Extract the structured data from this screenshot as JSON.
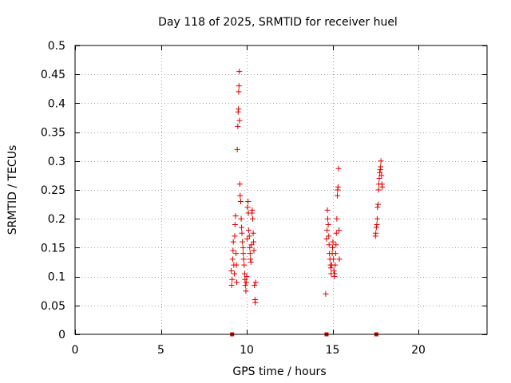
{
  "chart_data": {
    "type": "scatter",
    "title": "Day 118 of 2025, SRMTID for receiver huel",
    "xlabel": "GPS time / hours",
    "ylabel": "SRMTID / TECUs",
    "xlim": [
      0,
      24
    ],
    "ylim": [
      0,
      0.5
    ],
    "x_ticks": [
      0,
      5,
      10,
      15,
      20
    ],
    "x_tick_labels": [
      "0",
      "5",
      "10",
      "15",
      "20"
    ],
    "y_ticks": [
      0,
      0.05,
      0.1,
      0.15,
      0.2,
      0.25,
      0.3,
      0.35,
      0.4,
      0.45,
      0.5
    ],
    "y_tick_labels": [
      "0",
      "0.05",
      "0.1",
      "0.15",
      "0.2",
      "0.25",
      "0.3",
      "0.35",
      "0.4",
      "0.45",
      "0.5"
    ],
    "grid": true,
    "marker_color": "#e00000",
    "series": [
      {
        "name": "SRMTID",
        "marker": "plus",
        "points": [
          [
            9.1,
            0.11
          ],
          [
            9.12,
            0.085
          ],
          [
            9.15,
            0.095
          ],
          [
            9.18,
            0.13
          ],
          [
            9.2,
            0.145
          ],
          [
            9.22,
            0.16
          ],
          [
            9.25,
            0.12
          ],
          [
            9.28,
            0.105
          ],
          [
            9.3,
            0.17
          ],
          [
            9.32,
            0.19
          ],
          [
            9.35,
            0.205
          ],
          [
            9.38,
            0.14
          ],
          [
            9.4,
            0.12
          ],
          [
            9.42,
            0.09
          ],
          [
            9.45,
            0.32
          ],
          [
            9.48,
            0.36
          ],
          [
            9.5,
            0.385
          ],
          [
            9.52,
            0.39
          ],
          [
            9.53,
            0.42
          ],
          [
            9.55,
            0.43
          ],
          [
            9.57,
            0.455
          ],
          [
            9.58,
            0.37
          ],
          [
            9.6,
            0.26
          ],
          [
            9.62,
            0.24
          ],
          [
            9.65,
            0.23
          ],
          [
            9.68,
            0.2
          ],
          [
            9.7,
            0.185
          ],
          [
            9.72,
            0.175
          ],
          [
            9.75,
            0.16
          ],
          [
            9.78,
            0.15
          ],
          [
            9.8,
            0.14
          ],
          [
            9.82,
            0.13
          ],
          [
            9.85,
            0.12
          ],
          [
            9.88,
            0.105
          ],
          [
            9.9,
            0.095
          ],
          [
            9.92,
            0.085
          ],
          [
            9.95,
            0.075
          ],
          [
            9.97,
            0.09
          ],
          [
            10.0,
            0.1
          ],
          [
            10.02,
            0.165
          ],
          [
            10.05,
            0.22
          ],
          [
            10.08,
            0.23
          ],
          [
            10.1,
            0.21
          ],
          [
            10.12,
            0.18
          ],
          [
            10.15,
            0.17
          ],
          [
            10.18,
            0.15
          ],
          [
            10.2,
            0.14
          ],
          [
            10.22,
            0.13
          ],
          [
            10.25,
            0.125
          ],
          [
            10.28,
            0.155
          ],
          [
            10.3,
            0.21
          ],
          [
            10.32,
            0.215
          ],
          [
            10.35,
            0.2
          ],
          [
            10.38,
            0.175
          ],
          [
            10.4,
            0.16
          ],
          [
            10.42,
            0.145
          ],
          [
            10.45,
            0.085
          ],
          [
            10.48,
            0.06
          ],
          [
            10.5,
            0.055
          ],
          [
            10.52,
            0.09
          ],
          [
            14.6,
            0.07
          ],
          [
            14.65,
            0.165
          ],
          [
            14.68,
            0.18
          ],
          [
            14.7,
            0.215
          ],
          [
            14.72,
            0.2
          ],
          [
            14.75,
            0.19
          ],
          [
            14.78,
            0.17
          ],
          [
            14.8,
            0.155
          ],
          [
            14.82,
            0.14
          ],
          [
            14.85,
            0.13
          ],
          [
            14.88,
            0.12
          ],
          [
            14.9,
            0.115
          ],
          [
            14.92,
            0.105
          ],
          [
            14.95,
            0.12
          ],
          [
            14.98,
            0.14
          ],
          [
            15.0,
            0.15
          ],
          [
            15.02,
            0.16
          ],
          [
            15.05,
            0.13
          ],
          [
            15.08,
            0.11
          ],
          [
            15.1,
            0.1
          ],
          [
            15.12,
            0.105
          ],
          [
            15.15,
            0.12
          ],
          [
            15.18,
            0.14
          ],
          [
            15.2,
            0.155
          ],
          [
            15.22,
            0.175
          ],
          [
            15.25,
            0.2
          ],
          [
            15.28,
            0.24
          ],
          [
            15.3,
            0.25
          ],
          [
            15.32,
            0.255
          ],
          [
            15.35,
            0.287
          ],
          [
            15.38,
            0.18
          ],
          [
            15.4,
            0.13
          ],
          [
            17.5,
            0.17
          ],
          [
            17.52,
            0.175
          ],
          [
            17.55,
            0.185
          ],
          [
            17.58,
            0.19
          ],
          [
            17.6,
            0.2
          ],
          [
            17.62,
            0.22
          ],
          [
            17.65,
            0.225
          ],
          [
            17.68,
            0.25
          ],
          [
            17.7,
            0.26
          ],
          [
            17.72,
            0.27
          ],
          [
            17.75,
            0.28
          ],
          [
            17.78,
            0.285
          ],
          [
            17.8,
            0.29
          ],
          [
            17.82,
            0.3
          ],
          [
            17.85,
            0.275
          ],
          [
            17.88,
            0.26
          ],
          [
            17.9,
            0.255
          ]
        ]
      },
      {
        "name": "zero-level",
        "marker": "square",
        "points": [
          [
            9.15,
            0
          ],
          [
            14.65,
            0
          ],
          [
            17.55,
            0
          ]
        ]
      }
    ]
  }
}
